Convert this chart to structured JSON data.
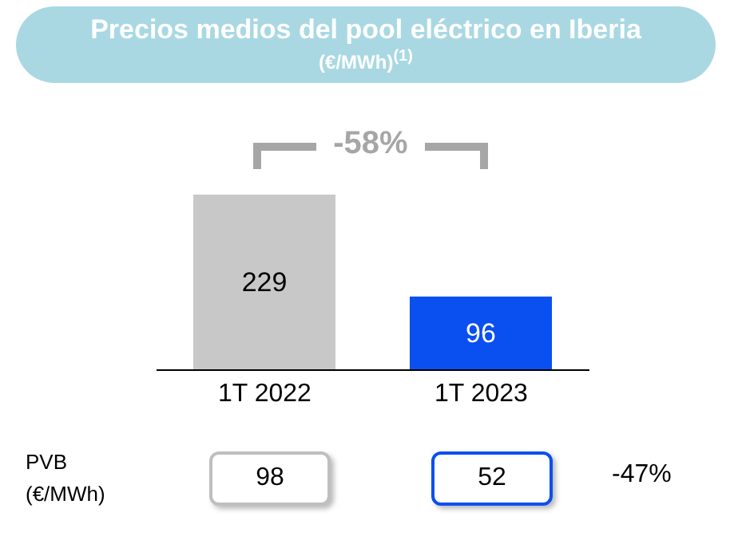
{
  "chart_data": {
    "type": "bar",
    "title": "Precios medios del pool eléctrico en Iberia",
    "subtitle": "(€/MWh)$^{(1)}$",
    "categories": [
      "1T 2022",
      "1T 2023"
    ],
    "values": [
      229,
      96
    ],
    "colors": [
      "#c8c8c8",
      "#0a4ff0"
    ],
    "data_labels": true,
    "annotations": [
      "-58%",
      "PVB\n(€/MWh)",
      "98",
      "52",
      "-47%"
    ]
  }
}
